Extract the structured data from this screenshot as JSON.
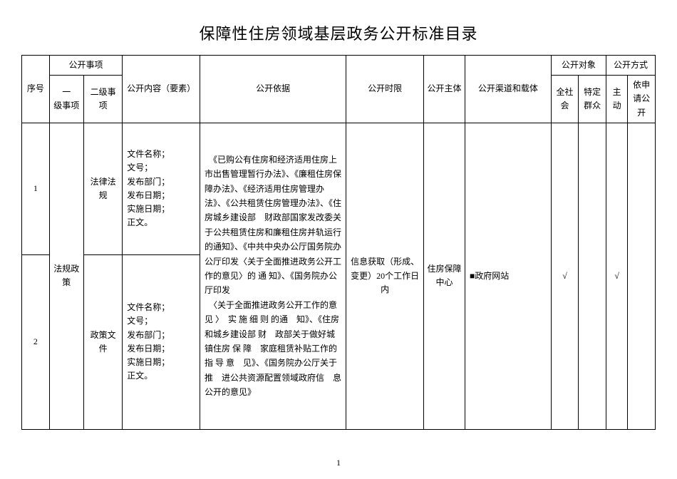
{
  "title": "保障性住房领域基层政务公开标准目录",
  "header": {
    "seq": "序号",
    "matter": "公开事项",
    "level1": "一\n级事项",
    "level2": "二级事项",
    "content": "公开内容（要素）",
    "basis": "公开依据",
    "time": "公开时限",
    "subject": "公开主体",
    "channel": "公开渠道和载体",
    "target": "公开对象",
    "method": "公开方式",
    "all_society": "全社会",
    "specific": "特定群众",
    "active": "主动",
    "by_apply": "依申请公开"
  },
  "rows": [
    {
      "seq": "1",
      "level2": "法律法规",
      "content": "文件名称；\n文号；\n发布部门；\n发布日期；\n实施日期；\n正文。"
    },
    {
      "seq": "2",
      "level2": "政策文件",
      "content": "文件名称；\n文号；\n发布部门；\n发布日期；\n实施日期；\n正文。"
    }
  ],
  "merged": {
    "level1": "法规政策",
    "basis": "　《已购公有住房和经济适用住房上市出售管理暂行办法》、《廉租住房保障办法》、《经济适用住房管理办法》、《公共租赁住房管理办法》、《住房城乡建设部　财政部国家发改委关于公共租赁住房和廉租住房并轨运行的通知》、《中共中央办公厅国务院办公厅印发〈关于全面推进政务公开工作的意见〉的 通 知》、《国务院办公厅印发\n　〈关于全面推进政务公开工作的意见 〉　实 施 细 则 的通　知》、《住房和城乡建设部 财　政部关于做好城镇住房 保 障　家庭租赁补贴工作的 指 导 意　见》、《国务院办公厅关于推　进公共资源配置领域政府信　息公开的意见》",
    "time": "信息获取（形成、变更）20个工作日内",
    "subject": "住房保障中心",
    "channel": "■政府网站",
    "all_society": "√",
    "specific": "",
    "active": "√",
    "by_apply": ""
  },
  "page_number": "1"
}
